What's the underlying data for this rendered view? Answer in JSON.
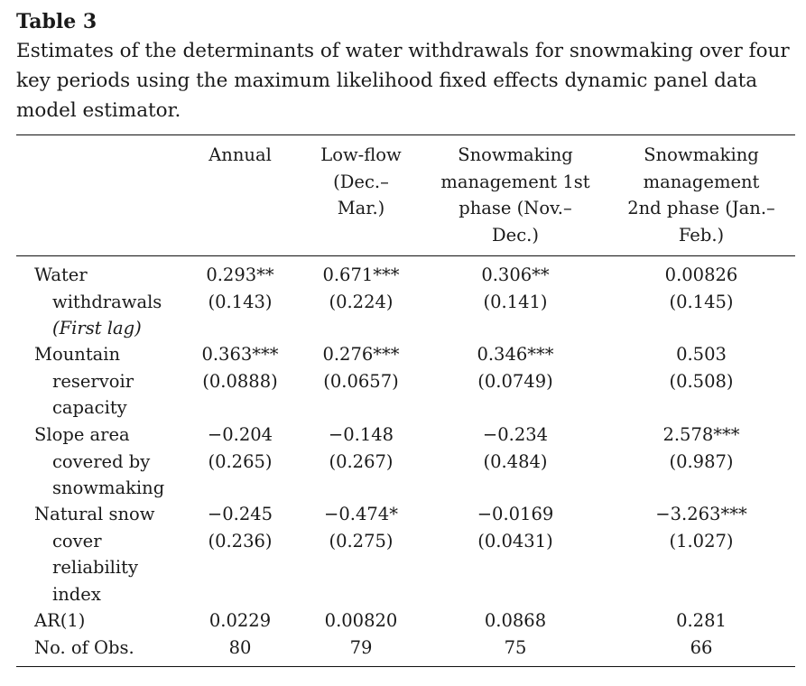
{
  "table_label": "Table 3",
  "caption_lines": [
    "Estimates of the determinants of water withdrawals for snowmaking over four",
    "key periods using the maximum likelihood fixed effects dynamic panel data",
    "model estimator."
  ],
  "columns": [
    {
      "lines": [
        "Annual"
      ]
    },
    {
      "lines": [
        "Low-flow",
        "(Dec.–",
        "Mar.)"
      ]
    },
    {
      "lines": [
        "Snowmaking",
        "management 1st",
        "phase (Nov.–",
        "Dec.)"
      ]
    },
    {
      "lines": [
        "Snowmaking",
        "management",
        "2nd phase (Jan.–",
        "Feb.)"
      ]
    }
  ],
  "rows": [
    {
      "label_lines": [
        "Water",
        "withdrawals",
        "(First lag)"
      ],
      "estimates": [
        "0.293**",
        "0.671***",
        "0.306**",
        "0.00826"
      ],
      "std_errors": [
        "(0.143)",
        "(0.224)",
        "(0.141)",
        "(0.145)"
      ]
    },
    {
      "label_lines": [
        "Mountain",
        "reservoir",
        "capacity"
      ],
      "estimates": [
        "0.363***",
        "0.276***",
        "0.346***",
        "0.503"
      ],
      "std_errors": [
        "(0.0888)",
        "(0.0657)",
        "(0.0749)",
        "(0.508)"
      ]
    },
    {
      "label_lines": [
        "Slope area",
        "covered by",
        "snowmaking"
      ],
      "estimates": [
        "−0.204",
        "−0.148",
        "−0.234",
        "2.578***"
      ],
      "std_errors": [
        "(0.265)",
        "(0.267)",
        "(0.484)",
        "(0.987)"
      ]
    },
    {
      "label_lines": [
        "Natural snow",
        "cover",
        "reliability",
        "index"
      ],
      "estimates": [
        "−0.245",
        "−0.474*",
        "−0.0169",
        "−3.263***"
      ],
      "std_errors": [
        "(0.236)",
        "(0.275)",
        "(0.0431)",
        "(1.027)"
      ]
    }
  ],
  "summary_rows": [
    {
      "label": "AR(1)",
      "values": [
        "0.0229",
        "0.00820",
        "0.0868",
        "0.281"
      ]
    },
    {
      "label": "No. of Obs.",
      "values": [
        "80",
        "79",
        "75",
        "66"
      ]
    }
  ]
}
